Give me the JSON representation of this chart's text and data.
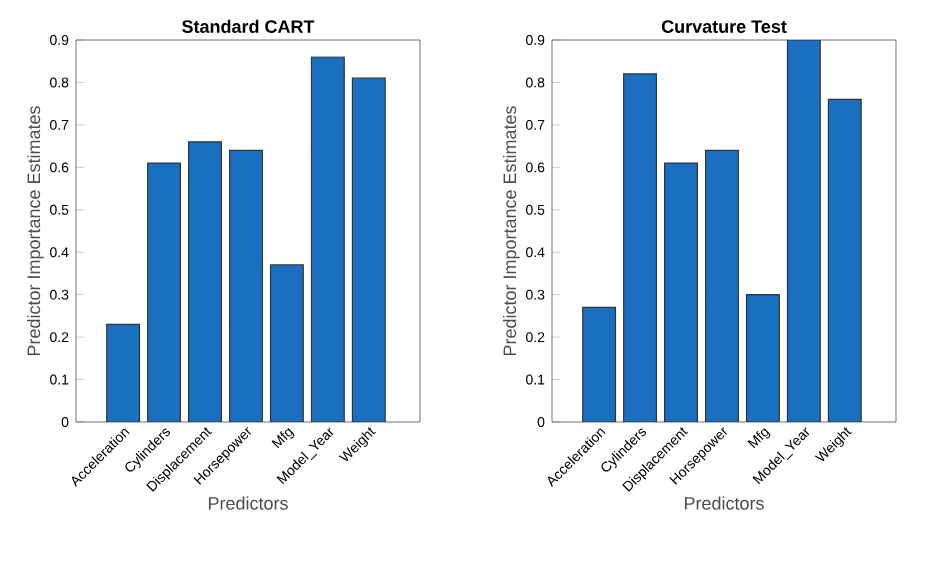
{
  "chart_data": [
    {
      "type": "bar",
      "title": "Standard CART",
      "xlabel": "Predictors",
      "ylabel": "Predictor Importance Estimates",
      "categories": [
        "Acceleration",
        "Cylinders",
        "Displacement",
        "Horsepower",
        "Mfg",
        "Model_Year",
        "Weight"
      ],
      "values": [
        0.23,
        0.61,
        0.66,
        0.64,
        0.37,
        0.86,
        0.81
      ],
      "color": "#1a6fc0",
      "ylim": [
        0,
        0.9
      ],
      "yticks": [
        0,
        0.1,
        0.2,
        0.3,
        0.4,
        0.5,
        0.6,
        0.7,
        0.8,
        0.9
      ]
    },
    {
      "type": "bar",
      "title": "Curvature Test",
      "xlabel": "Predictors",
      "ylabel": "Predictor Importance Estimates",
      "categories": [
        "Acceleration",
        "Cylinders",
        "Displacement",
        "Horsepower",
        "Mfg",
        "Model_Year",
        "Weight"
      ],
      "values": [
        0.27,
        0.82,
        0.61,
        0.64,
        0.3,
        0.9,
        0.76
      ],
      "color": "#1a6fc0",
      "ylim": [
        0,
        0.9
      ],
      "yticks": [
        0,
        0.1,
        0.2,
        0.3,
        0.4,
        0.5,
        0.6,
        0.7,
        0.8,
        0.9
      ]
    }
  ]
}
